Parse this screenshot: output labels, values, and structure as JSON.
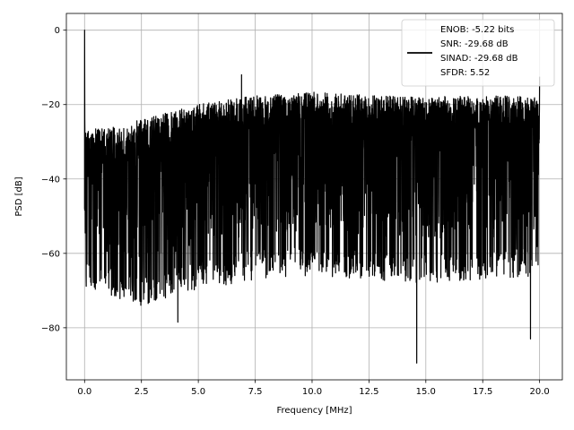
{
  "chart_data": {
    "type": "line",
    "title": "",
    "xlabel": "Frequency [MHz]",
    "ylabel": "PSD [dB]",
    "xlim": [
      -0.8,
      21.0
    ],
    "ylim": [
      -94.0,
      4.5
    ],
    "xticks": [
      0.0,
      2.5,
      5.0,
      7.5,
      10.0,
      12.5,
      15.0,
      17.5,
      20.0
    ],
    "xtick_labels": [
      "0.0",
      "2.5",
      "5.0",
      "7.5",
      "10.0",
      "12.5",
      "15.0",
      "17.5",
      "20.0"
    ],
    "yticks": [
      0,
      -20,
      -40,
      -60,
      -80
    ],
    "ytick_labels": [
      "0",
      "−20",
      "−40",
      "−60",
      "−80"
    ],
    "grid": true,
    "legend_position": "top-right",
    "legend_entries": [
      "ENOB: -5.22 bits",
      "SNR: -29.68 dB",
      "SINAD: -29.68 dB",
      "SFDR: 5.52"
    ],
    "series": [
      {
        "color": "#000000",
        "description": "dense noise spectrum",
        "x_range": [
          0.0,
          20.0
        ],
        "peak": {
          "x": 0.0,
          "y": 0.0
        },
        "spurs": [
          {
            "x": 6.9,
            "y": -12.0
          },
          {
            "x": 20.0,
            "y": -12.5
          }
        ],
        "deep_dips": [
          {
            "x": 14.6,
            "y": -89.5
          },
          {
            "x": 19.6,
            "y": -83.0
          },
          {
            "x": 4.1,
            "y": -78.5
          }
        ],
        "upper_envelope": [
          [
            0.0,
            -26.5
          ],
          [
            1.0,
            -26.5
          ],
          [
            2.5,
            -24.0
          ],
          [
            5.0,
            -20.0
          ],
          [
            7.5,
            -17.5
          ],
          [
            10.0,
            -16.5
          ],
          [
            12.5,
            -17.5
          ],
          [
            15.0,
            -18.0
          ],
          [
            17.5,
            -17.5
          ],
          [
            20.0,
            -18.0
          ]
        ],
        "typical_floor": [
          [
            0.0,
            -62.0
          ],
          [
            2.5,
            -66.0
          ],
          [
            5.0,
            -62.0
          ],
          [
            7.5,
            -59.0
          ],
          [
            10.0,
            -58.0
          ],
          [
            12.5,
            -59.0
          ],
          [
            15.0,
            -60.0
          ],
          [
            17.5,
            -60.0
          ],
          [
            20.0,
            -58.0
          ]
        ],
        "line_style": "solid"
      }
    ]
  }
}
